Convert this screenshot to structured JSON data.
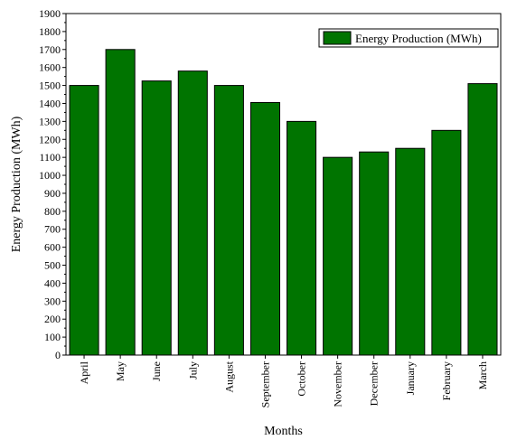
{
  "chart_data": {
    "type": "bar",
    "xlabel": "Months",
    "ylabel": "Energy Production (MWh)",
    "categories": [
      "April",
      "May",
      "June",
      "July",
      "August",
      "September",
      "October",
      "November",
      "December",
      "January",
      "February",
      "March"
    ],
    "series": [
      {
        "name": "Energy Production (MWh)",
        "values": [
          1500,
          1700,
          1525,
          1580,
          1500,
          1405,
          1300,
          1100,
          1130,
          1150,
          1250,
          1510
        ]
      }
    ],
    "ylim": [
      0,
      1900
    ],
    "yticks": [
      0,
      100,
      200,
      300,
      400,
      500,
      600,
      700,
      800,
      900,
      1000,
      1100,
      1200,
      1300,
      1400,
      1500,
      1600,
      1700,
      1800,
      1900
    ],
    "grid": false,
    "legend_position": "top-right",
    "colors": {
      "bar": "#007400",
      "edge": "#000000"
    }
  }
}
